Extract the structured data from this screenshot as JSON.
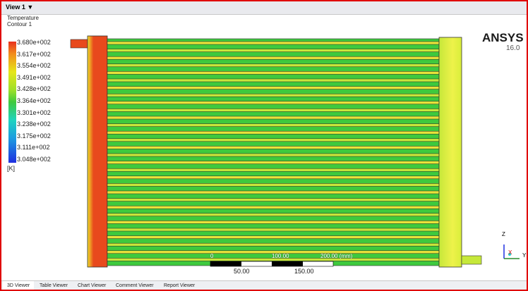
{
  "view_bar": {
    "title": "View 1 ▼"
  },
  "legend": {
    "title": "Temperature",
    "subtitle": "Contour 1",
    "labels": [
      "3.680e+002",
      "3.617e+002",
      "3.554e+002",
      "3.491e+002",
      "3.428e+002",
      "3.364e+002",
      "3.301e+002",
      "3.238e+002",
      "3.175e+002",
      "3.111e+002",
      "3.048e+002"
    ],
    "unit": "[K]"
  },
  "logo": {
    "name": "ANSYS",
    "version": "16.0"
  },
  "scale": {
    "top_labels": [
      "0",
      "100.00",
      "200.00 (mm)"
    ],
    "bottom_labels": [
      "50.00",
      "150.00"
    ]
  },
  "axes": {
    "z": "Z",
    "x": "X",
    "y": "Y"
  },
  "tabs": [
    "3D Viewer",
    "Table Viewer",
    "Chart Viewer",
    "Comment Viewer",
    "Report Viewer"
  ]
}
